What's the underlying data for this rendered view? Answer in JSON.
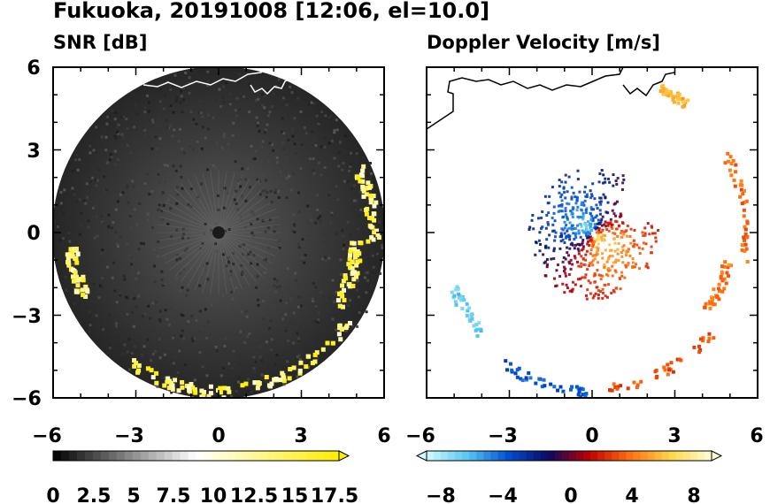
{
  "header": {
    "title": "Fukuoka, 20191008 [12:06, el=10.0]"
  },
  "chart_data": [
    {
      "type": "heatmap",
      "title": "SNR [dB]",
      "xlim": [
        -6,
        6
      ],
      "ylim": [
        -6,
        6
      ],
      "x_ticks": [
        "−6",
        "−3",
        "0",
        "3",
        "6"
      ],
      "y_ticks": [
        "6",
        "3",
        "0",
        "−3",
        "−6"
      ],
      "colorbar": {
        "ticks": [
          "0",
          "2.5",
          "5",
          "7.5",
          "10",
          "12.5",
          "15",
          "17.5"
        ],
        "range": [
          0,
          18
        ],
        "colors": [
          "#000000",
          "#ffffff",
          "#ffee00"
        ]
      },
      "echo_region": "ring of strong echoes (yellow) along the south and east edge of the radar disk",
      "grid": false
    },
    {
      "type": "heatmap",
      "title": "Doppler Velocity [m/s]",
      "xlim": [
        -6,
        6
      ],
      "ylim": [
        -6,
        6
      ],
      "x_ticks": [
        "−6",
        "−3",
        "0",
        "3",
        "6"
      ],
      "colorbar": {
        "ticks": [
          "−8",
          "−4",
          "0",
          "4",
          "8"
        ],
        "range": [
          -10,
          10
        ],
        "colors": [
          "#cffcff",
          "#58c8f0",
          "#0050d0",
          "#0a0a60",
          "#c00000",
          "#ff7010",
          "#ffd848",
          "#fffcd8"
        ]
      },
      "grid": false
    }
  ]
}
